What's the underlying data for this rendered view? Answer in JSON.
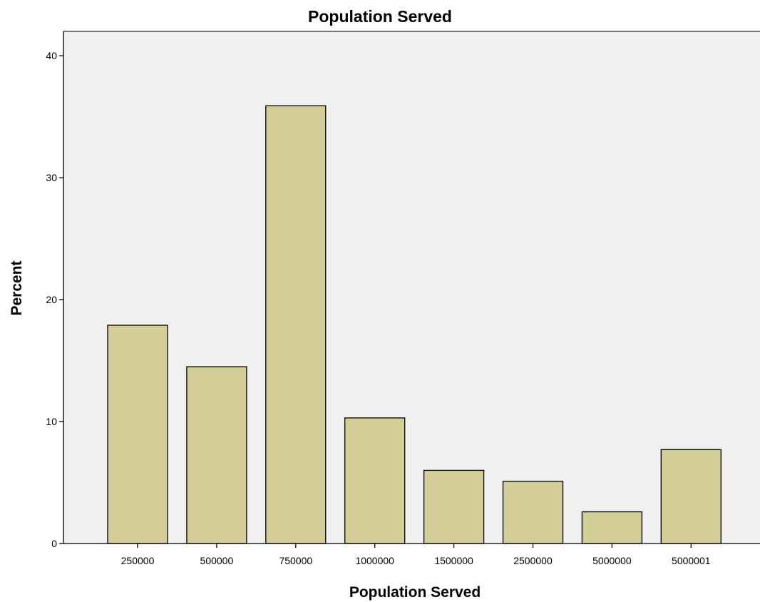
{
  "chart_data": {
    "type": "bar",
    "title": "Population Served",
    "xlabel": "Population Served",
    "ylabel": "Percent",
    "categories": [
      "250000",
      "500000",
      "750000",
      "1000000",
      "1500000",
      "2500000",
      "5000000",
      "5000001"
    ],
    "values": [
      17.9,
      14.5,
      35.9,
      10.3,
      6.0,
      5.1,
      2.6,
      7.7
    ],
    "ylim": [
      0,
      42
    ],
    "yticks": [
      0,
      10,
      20,
      30,
      40
    ],
    "grid": false,
    "legend": "none",
    "colors": {
      "plot_background": "#f0f0f0",
      "bar_fill": "#d3ce97",
      "bar_stroke": "#000000"
    }
  }
}
